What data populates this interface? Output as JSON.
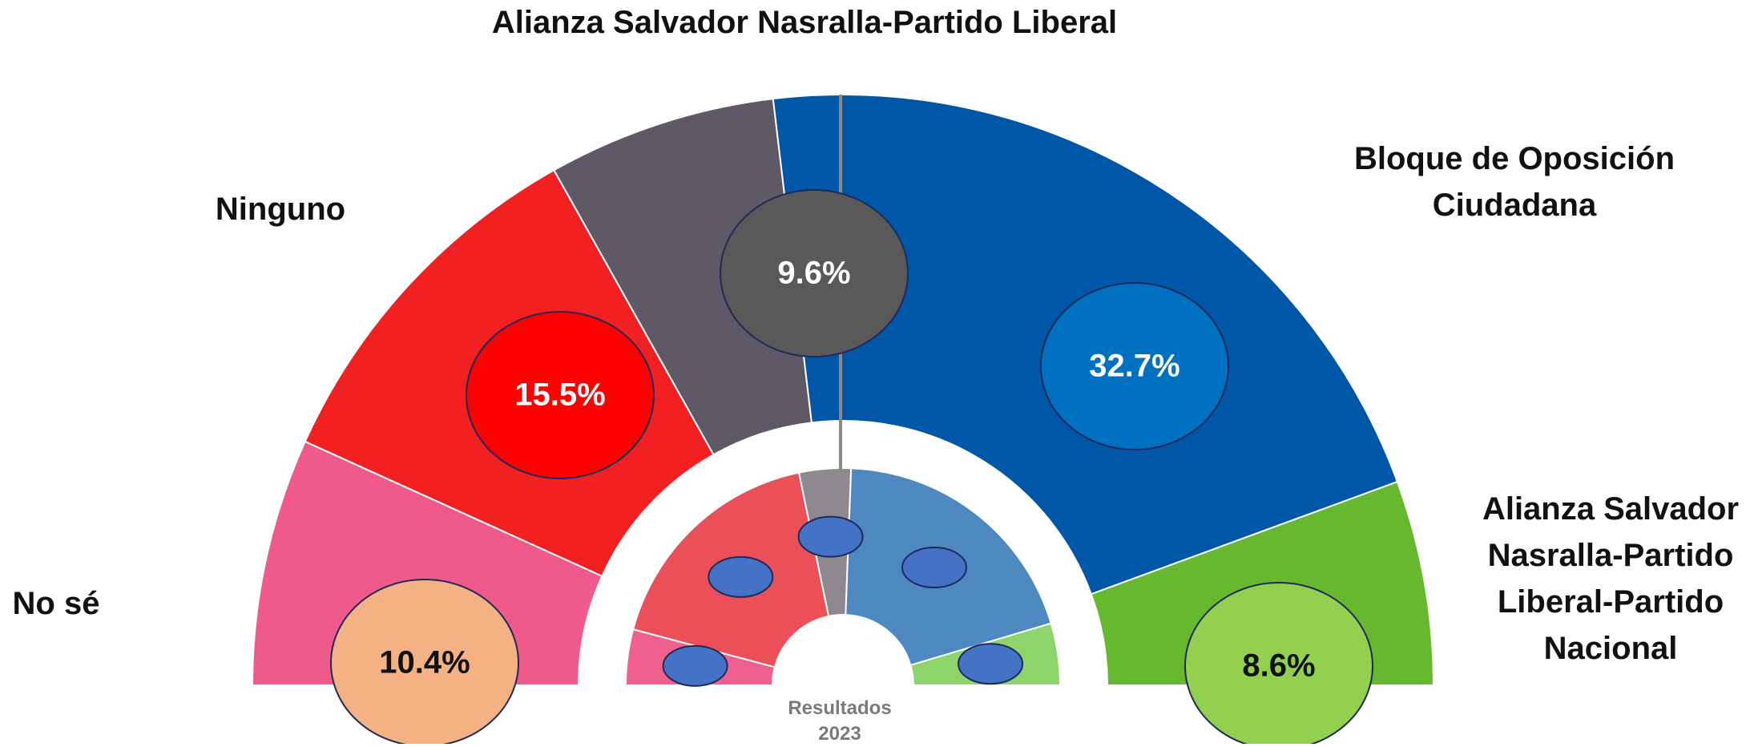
{
  "chart_data": {
    "type": "semi-donut",
    "categories": [
      "No sé",
      "Ninguno",
      "Alianza Salvador Nasralla-Partido Liberal",
      "Bloque de Oposición Ciudadana",
      "Alianza Salvador Nasralla-Partido Liberal-Partido Nacional"
    ],
    "values": [
      10.4,
      15.5,
      9.6,
      32.7,
      8.6
    ],
    "value_labels": [
      "10.4%",
      "15.5%",
      "9.6%",
      "32.7%",
      "8.6%"
    ],
    "colors": [
      "#f05a8a",
      "#f22020",
      "#5f5866",
      "#0057a8",
      "#66b82e"
    ],
    "label_colors": [
      "#f4b183",
      "#ff0000",
      "#595959",
      "#0070c0",
      "#92d050"
    ],
    "label_text_colors": [
      "#111111",
      "#ffffff",
      "#ffffff",
      "#ffffff",
      "#111111"
    ],
    "inner": {
      "title": "Resultados 2023",
      "values": [
        8.3,
        35.2,
        7.7,
        39.6,
        9.2
      ],
      "colors": [
        "#f0608e",
        "#eb5058",
        "#8e8890",
        "#4d88c0",
        "#8dd46a"
      ]
    }
  }
}
